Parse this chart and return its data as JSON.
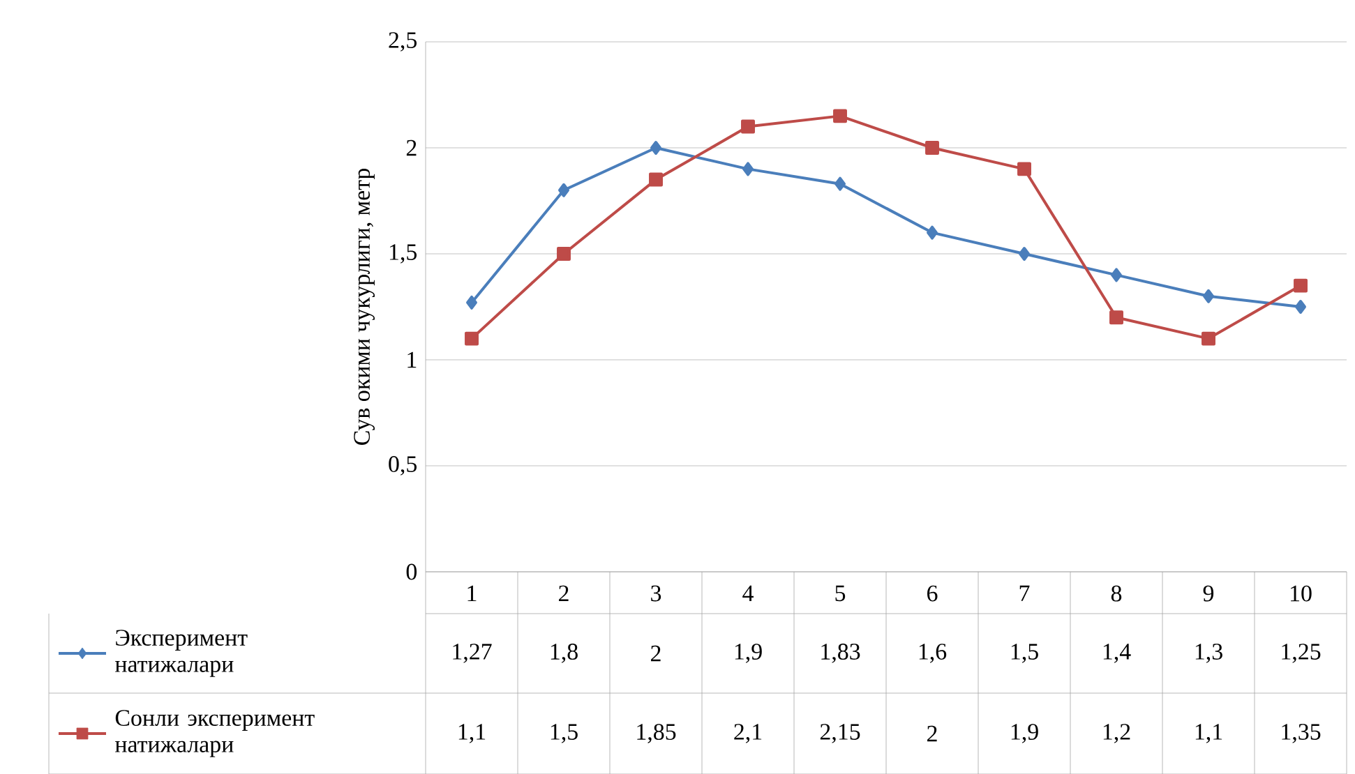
{
  "chart_data": {
    "type": "line",
    "ylabel": "Сув окими чукурлиги, метр",
    "categories": [
      "1",
      "2",
      "3",
      "4",
      "5",
      "6",
      "7",
      "8",
      "9",
      "10"
    ],
    "ylim": [
      0,
      2.5
    ],
    "yticks": [
      0,
      {
        "value": 0.5,
        "label": "0,5"
      },
      1,
      {
        "value": 1.5,
        "label": "1,5"
      },
      2,
      {
        "value": 2.5,
        "label": "2,5"
      }
    ],
    "grid": "y",
    "legend": "bottom",
    "line_style": "solid",
    "series": [
      {
        "name": "Эксперимент натижалари",
        "color": "#4a7ebb",
        "marker": "diamond",
        "values": [
          1.27,
          1.8,
          2,
          1.9,
          1.83,
          1.6,
          1.5,
          1.4,
          1.3,
          1.25
        ],
        "value_labels": [
          "1,27",
          "1,8",
          "2",
          "1,9",
          "1,83",
          "1,6",
          "1,5",
          "1,4",
          "1,3",
          "1,25"
        ]
      },
      {
        "name": "Сонли эксперимент натижалари",
        "color": "#be4b48",
        "marker": "square",
        "values": [
          1.1,
          1.5,
          1.85,
          2.1,
          2.15,
          2,
          1.9,
          1.2,
          1.1,
          1.35
        ],
        "value_labels": [
          "1,1",
          "1,5",
          "1,85",
          "2,1",
          "2,15",
          "2",
          "1,9",
          "1,2",
          "1,1",
          "1,35"
        ]
      }
    ]
  }
}
